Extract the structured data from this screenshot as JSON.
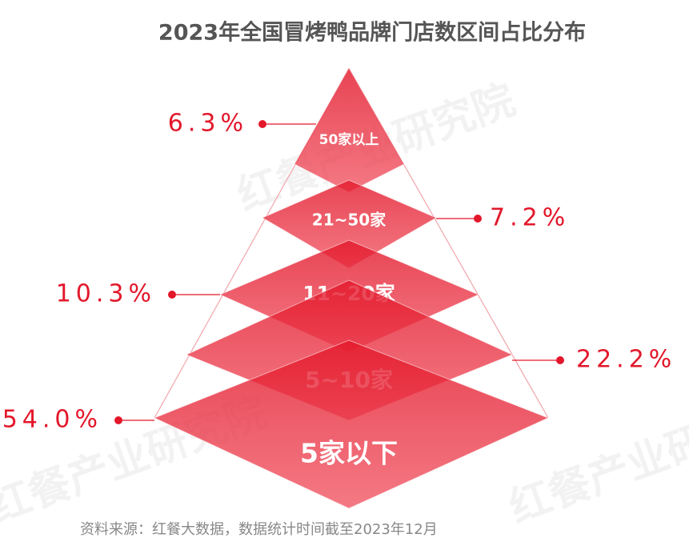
{
  "chart_data": {
    "type": "pyramid",
    "title": "2023年全国冒烤鸭品牌门店数区间占比分布",
    "categories": [
      "50家以上",
      "21~50家",
      "11~20家",
      "5~10家",
      "5家以下"
    ],
    "values": [
      6.3,
      7.2,
      10.3,
      22.2,
      54.0
    ],
    "value_labels": [
      "6.3%",
      "7.2%",
      "10.3%",
      "22.2%",
      "54.0%"
    ],
    "color": "#e3172a",
    "source": "资料来源：红餐大数据，数据统计时间截至2023年12月",
    "watermark": "红餐产业研究院"
  }
}
